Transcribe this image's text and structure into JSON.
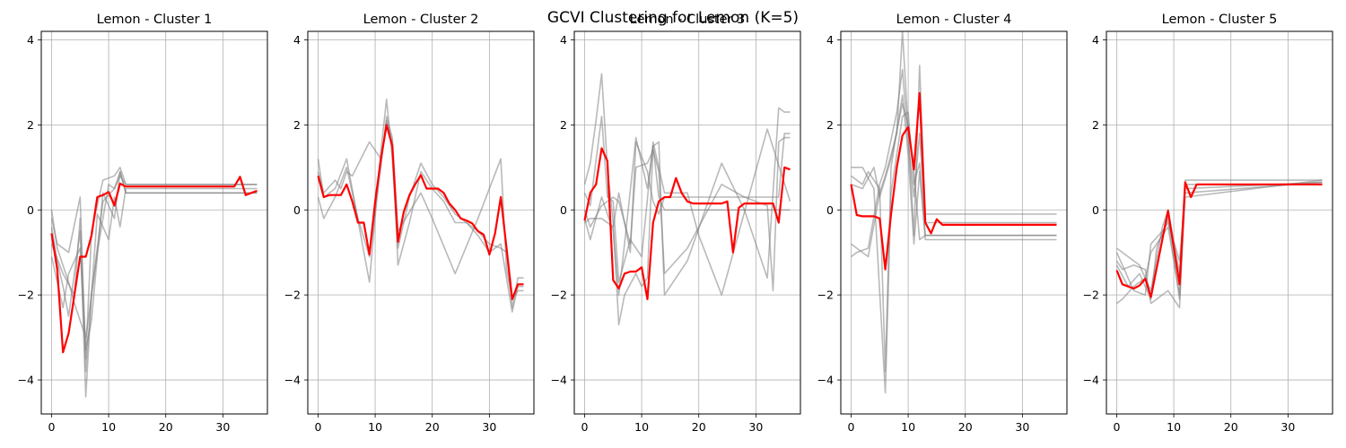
{
  "figure": {
    "suptitle": "GCVI Clustering for Lemon (K=5)"
  },
  "colors": {
    "member": "#808080",
    "centroid": "#ff0000",
    "grid": "#b0b0b0"
  },
  "chart_data": [
    {
      "type": "line",
      "title": "Lemon - Cluster 1",
      "xlim": [
        -1.8,
        37.8
      ],
      "ylim": [
        -4.8,
        4.2
      ],
      "xticks": [
        0,
        10,
        20,
        30
      ],
      "yticks": [
        -4,
        -2,
        0,
        2,
        4
      ],
      "grid": true,
      "series": [
        {
          "role": "member",
          "x": [
            0,
            1,
            3,
            5,
            6,
            7,
            9,
            11,
            12,
            13,
            36
          ],
          "y": [
            -0.2,
            -0.8,
            -1.0,
            0.3,
            -3.5,
            -0.5,
            0.7,
            0.8,
            1.0,
            0.6,
            0.6
          ]
        },
        {
          "role": "member",
          "x": [
            0,
            1,
            2,
            3,
            5,
            6,
            7,
            9,
            11,
            12,
            13,
            36
          ],
          "y": [
            -0.4,
            -1.2,
            -1.8,
            -2.5,
            -0.5,
            -4.4,
            -2.0,
            0.2,
            0.5,
            0.9,
            0.4,
            0.4
          ]
        },
        {
          "role": "member",
          "x": [
            0,
            2,
            4,
            5,
            6,
            8,
            10,
            11,
            12,
            13,
            36
          ],
          "y": [
            -0.8,
            -1.5,
            -2.0,
            -0.2,
            -3.8,
            -0.1,
            -0.7,
            0.3,
            -0.4,
            0.5,
            0.5
          ]
        },
        {
          "role": "member",
          "x": [
            0,
            1,
            3,
            4,
            6,
            8,
            10,
            11,
            12,
            13,
            36
          ],
          "y": [
            0.0,
            -0.9,
            -1.7,
            -2.2,
            -3.0,
            -1.0,
            0.6,
            0.5,
            0.8,
            0.6,
            0.6
          ]
        },
        {
          "role": "member",
          "x": [
            0,
            2,
            3,
            5,
            6,
            7,
            9,
            11,
            12,
            13,
            36
          ],
          "y": [
            -1.1,
            -2.3,
            -1.5,
            -0.9,
            -3.3,
            -2.6,
            0.4,
            -0.2,
            0.9,
            0.4,
            0.4
          ]
        },
        {
          "role": "centroid",
          "x": [
            0,
            1,
            2,
            3,
            4,
            5,
            6,
            7,
            8,
            9,
            10,
            11,
            12,
            13,
            20,
            30,
            32,
            33,
            34,
            36
          ],
          "y": [
            -0.55,
            -1.4,
            -3.35,
            -2.9,
            -2.0,
            -1.1,
            -1.1,
            -0.6,
            0.3,
            0.35,
            0.42,
            0.1,
            0.62,
            0.55,
            0.55,
            0.55,
            0.55,
            0.78,
            0.35,
            0.45
          ]
        }
      ]
    },
    {
      "type": "line",
      "title": "Lemon - Cluster 2",
      "xlim": [
        -1.8,
        37.8
      ],
      "ylim": [
        -4.8,
        4.2
      ],
      "xticks": [
        0,
        10,
        20,
        30
      ],
      "yticks": [
        -4,
        -2,
        0,
        2,
        4
      ],
      "grid": true,
      "series": [
        {
          "role": "member",
          "x": [
            0,
            1,
            3,
            5,
            9,
            11,
            12,
            13,
            14,
            16,
            18,
            20,
            22,
            24,
            26,
            28,
            30,
            32,
            33,
            34,
            35,
            36
          ],
          "y": [
            1.2,
            0.3,
            0.5,
            1.2,
            -1.7,
            1.4,
            2.6,
            1.2,
            -0.9,
            0.3,
            1.1,
            0.6,
            0.3,
            -0.1,
            -0.3,
            -0.5,
            -0.8,
            -0.9,
            -1.0,
            -2.3,
            -1.6,
            -1.6
          ]
        },
        {
          "role": "member",
          "x": [
            0,
            1,
            3,
            4,
            5,
            6,
            9,
            11,
            12,
            13,
            14,
            16,
            18,
            20,
            22,
            24,
            26,
            28,
            30,
            32,
            34,
            35,
            36
          ],
          "y": [
            0.9,
            0.4,
            0.7,
            0.5,
            0.9,
            0.8,
            1.6,
            1.2,
            2.1,
            1.6,
            -1.3,
            -0.3,
            0.9,
            0.5,
            0.2,
            -0.3,
            -0.3,
            -0.6,
            -1.0,
            -0.8,
            -2.4,
            -1.8,
            -1.8
          ]
        },
        {
          "role": "member",
          "x": [
            0,
            1,
            3,
            5,
            7,
            9,
            11,
            12,
            13,
            14,
            18,
            20,
            24,
            28,
            32,
            33,
            34,
            35,
            36
          ],
          "y": [
            0.3,
            -0.2,
            0.3,
            1.0,
            -0.2,
            -1.1,
            1.0,
            2.2,
            1.7,
            -0.5,
            0.4,
            -0.2,
            -1.5,
            -0.2,
            1.2,
            -1.4,
            -2.1,
            -1.9,
            -1.9
          ]
        },
        {
          "role": "centroid",
          "x": [
            0,
            1,
            2,
            3,
            4,
            5,
            6,
            7,
            8,
            9,
            10,
            11,
            12,
            13,
            14,
            15,
            16,
            17,
            18,
            19,
            20,
            21,
            22,
            23,
            24,
            25,
            26,
            27,
            28,
            29,
            30,
            31,
            32,
            33,
            34,
            35,
            36
          ],
          "y": [
            0.8,
            0.3,
            0.35,
            0.35,
            0.35,
            0.6,
            0.2,
            -0.3,
            -0.3,
            -1.05,
            0.2,
            1.2,
            2.0,
            1.5,
            -0.75,
            -0.05,
            0.35,
            0.6,
            0.82,
            0.5,
            0.5,
            0.5,
            0.4,
            0.15,
            0.0,
            -0.2,
            -0.25,
            -0.32,
            -0.5,
            -0.58,
            -1.05,
            -0.55,
            0.3,
            -0.9,
            -2.1,
            -1.75,
            -1.75
          ]
        }
      ]
    },
    {
      "type": "line",
      "title": "Lemon - Cluster 3",
      "xlim": [
        -1.8,
        37.8
      ],
      "ylim": [
        -4.8,
        4.2
      ],
      "xticks": [
        0,
        10,
        20,
        30
      ],
      "yticks": [
        -4,
        -2,
        0,
        2,
        4
      ],
      "grid": true,
      "series": [
        {
          "role": "member",
          "x": [
            0,
            1,
            3,
            5,
            6,
            7,
            9,
            11,
            12,
            13,
            14,
            18,
            24,
            28,
            32,
            34,
            35,
            36
          ],
          "y": [
            -0.2,
            -0.7,
            0.3,
            -0.5,
            -2.0,
            -0.8,
            1.7,
            0.5,
            1.5,
            1.6,
            -2.0,
            -1.2,
            1.1,
            0.0,
            -1.6,
            2.4,
            2.3,
            2.3
          ]
        },
        {
          "role": "member",
          "x": [
            0,
            1,
            3,
            5,
            6,
            8,
            9,
            11,
            12,
            13,
            14,
            18,
            24,
            28,
            32,
            33,
            34,
            35,
            36
          ],
          "y": [
            0.0,
            -0.4,
            0.1,
            0.3,
            0.2,
            -0.8,
            1.0,
            1.1,
            1.4,
            0.9,
            -1.5,
            -0.9,
            0.6,
            0.3,
            0.1,
            -1.9,
            1.6,
            1.7,
            1.7
          ]
        },
        {
          "role": "member",
          "x": [
            0,
            1,
            2,
            3,
            4,
            5,
            6,
            7,
            9,
            10,
            11,
            12,
            13,
            14,
            36
          ],
          "y": [
            0.6,
            1.1,
            2.1,
            3.2,
            1.0,
            -0.3,
            -2.7,
            -2.0,
            -1.5,
            -1.8,
            -1.6,
            1.5,
            0.3,
            0.0,
            0.0
          ]
        },
        {
          "role": "member",
          "x": [
            0,
            1,
            3,
            4,
            5,
            6,
            8,
            10,
            12,
            14,
            18,
            20,
            24,
            32,
            36
          ],
          "y": [
            0.4,
            0.1,
            2.2,
            0.3,
            0.2,
            -1.7,
            -0.7,
            -1.1,
            1.6,
            0.4,
            0.4,
            -0.6,
            -2.0,
            1.9,
            0.2
          ]
        },
        {
          "role": "member",
          "x": [
            0,
            1,
            3,
            5,
            6,
            8,
            9,
            11,
            12,
            13,
            14,
            20,
            28,
            32,
            34,
            35,
            36
          ],
          "y": [
            -0.3,
            -0.2,
            -0.2,
            -0.4,
            0.4,
            -1.0,
            1.6,
            0.9,
            0.2,
            -0.1,
            0.3,
            0.3,
            0.3,
            0.3,
            0.3,
            1.8,
            1.8
          ]
        },
        {
          "role": "centroid",
          "x": [
            0,
            1,
            2,
            3,
            4,
            5,
            6,
            7,
            8,
            9,
            10,
            11,
            12,
            13,
            14,
            15,
            16,
            17,
            18,
            19,
            20,
            21,
            22,
            23,
            24,
            25,
            26,
            27,
            28,
            29,
            30,
            31,
            32,
            33,
            34,
            35,
            36
          ],
          "y": [
            -0.25,
            0.4,
            0.6,
            1.45,
            1.15,
            -1.65,
            -1.85,
            -1.5,
            -1.45,
            -1.45,
            -1.35,
            -2.1,
            -0.3,
            0.2,
            0.3,
            0.3,
            0.75,
            0.4,
            0.2,
            0.15,
            0.15,
            0.15,
            0.15,
            0.15,
            0.15,
            0.2,
            -1.0,
            0.05,
            0.15,
            0.15,
            0.15,
            0.15,
            0.15,
            0.15,
            -0.3,
            1.0,
            0.95
          ]
        }
      ]
    },
    {
      "type": "line",
      "title": "Lemon - Cluster 4",
      "xlim": [
        -1.8,
        37.8
      ],
      "ylim": [
        -4.8,
        4.2
      ],
      "xticks": [
        0,
        10,
        20,
        30
      ],
      "yticks": [
        -4,
        -2,
        0,
        2,
        4
      ],
      "grid": true,
      "series": [
        {
          "role": "member",
          "x": [
            0,
            2,
            4,
            6,
            7,
            9,
            10,
            11,
            12,
            13,
            36
          ],
          "y": [
            1.0,
            1.0,
            0.5,
            -4.3,
            0.4,
            2.2,
            2.3,
            0.6,
            1.1,
            -0.6,
            -0.6
          ]
        },
        {
          "role": "member",
          "x": [
            0,
            2,
            3,
            5,
            6,
            7,
            9,
            10,
            11,
            12,
            13,
            36
          ],
          "y": [
            0.8,
            0.6,
            0.9,
            0.5,
            -3.8,
            1.0,
            2.7,
            1.3,
            -0.8,
            0.9,
            -0.7,
            -0.7
          ]
        },
        {
          "role": "member",
          "x": [
            0,
            1,
            3,
            5,
            6,
            8,
            9,
            10,
            11,
            12,
            13,
            36
          ],
          "y": [
            -0.8,
            -0.9,
            -1.1,
            0.4,
            0.8,
            1.8,
            4.2,
            1.9,
            -0.6,
            3.4,
            -0.1,
            -0.1
          ]
        },
        {
          "role": "member",
          "x": [
            0,
            1,
            3,
            5,
            6,
            8,
            9,
            10,
            11,
            12,
            13,
            36
          ],
          "y": [
            -1.1,
            -1.0,
            -0.9,
            0.6,
            1.0,
            2.3,
            3.3,
            1.6,
            0.3,
            1.8,
            -0.3,
            -0.3
          ]
        },
        {
          "role": "member",
          "x": [
            0,
            2,
            4,
            5,
            7,
            9,
            10,
            11,
            12,
            13,
            36
          ],
          "y": [
            0.6,
            0.5,
            1.0,
            0.3,
            1.2,
            2.5,
            2.0,
            0.9,
            -0.7,
            -0.6,
            -0.6
          ]
        },
        {
          "role": "centroid",
          "x": [
            0,
            1,
            2,
            3,
            4,
            5,
            6,
            7,
            8,
            9,
            10,
            11,
            12,
            13,
            14,
            15,
            16,
            20,
            30,
            36
          ],
          "y": [
            0.6,
            -0.12,
            -0.15,
            -0.15,
            -0.15,
            -0.2,
            -1.4,
            -0.1,
            1.0,
            1.75,
            1.95,
            0.95,
            2.75,
            -0.3,
            -0.55,
            -0.22,
            -0.35,
            -0.35,
            -0.35,
            -0.35
          ]
        }
      ]
    },
    {
      "type": "line",
      "title": "Lemon - Cluster 5",
      "xlim": [
        -1.8,
        37.8
      ],
      "ylim": [
        -4.8,
        4.2
      ],
      "xticks": [
        0,
        10,
        20,
        30
      ],
      "yticks": [
        -4,
        -2,
        0,
        2,
        4
      ],
      "grid": true,
      "series": [
        {
          "role": "member",
          "x": [
            0,
            1,
            3,
            5,
            6,
            9,
            11,
            12,
            36
          ],
          "y": [
            -1.2,
            -1.4,
            -1.3,
            -1.4,
            -2.2,
            -1.9,
            -2.3,
            0.7,
            0.7
          ]
        },
        {
          "role": "member",
          "x": [
            0,
            2,
            4,
            6,
            8,
            9,
            11,
            12,
            36
          ],
          "y": [
            -0.9,
            -1.1,
            -1.3,
            -1.9,
            -0.4,
            0.0,
            -1.5,
            0.5,
            0.65
          ]
        },
        {
          "role": "member",
          "x": [
            0,
            1,
            3,
            5,
            6,
            9,
            11,
            12,
            36
          ],
          "y": [
            -2.2,
            -2.1,
            -1.8,
            -1.6,
            -1.0,
            -0.4,
            -2.0,
            0.6,
            0.6
          ]
        },
        {
          "role": "member",
          "x": [
            0,
            1,
            3,
            5,
            6,
            8,
            9,
            11,
            12,
            36
          ],
          "y": [
            -1.0,
            -1.3,
            -1.9,
            -2.0,
            -0.8,
            -0.5,
            -0.3,
            -1.2,
            0.4,
            0.65
          ]
        },
        {
          "role": "member",
          "x": [
            0,
            2,
            4,
            6,
            7,
            9,
            11,
            12,
            36
          ],
          "y": [
            -1.3,
            -1.8,
            -1.5,
            -2.1,
            -0.9,
            -0.2,
            -2.1,
            0.3,
            0.7
          ]
        },
        {
          "role": "centroid",
          "x": [
            0,
            1,
            2,
            3,
            4,
            5,
            6,
            9,
            11,
            12,
            13,
            14,
            36
          ],
          "y": [
            -1.42,
            -1.75,
            -1.8,
            -1.85,
            -1.78,
            -1.62,
            -2.05,
            -0.02,
            -1.75,
            0.65,
            0.3,
            0.6,
            0.6
          ]
        }
      ]
    }
  ]
}
